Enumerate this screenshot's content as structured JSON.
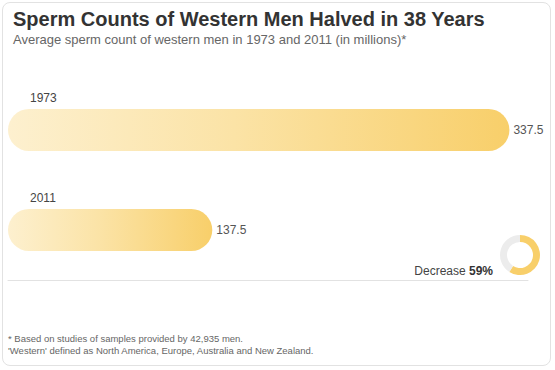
{
  "chart_data": {
    "type": "bar",
    "title": "Sperm Counts of Western Men Halved in 38 Years",
    "subtitle": "Average sperm count of western men in 1973 and 2011 (in millions)*",
    "orientation": "horizontal",
    "categories": [
      "1973",
      "2011"
    ],
    "values": [
      337.5,
      137.5
    ],
    "color": "#f8cf6a",
    "xlim": [
      0,
      350
    ],
    "data_labels": true,
    "tick_labels": "y",
    "grid": false,
    "annotation": {
      "text": "Decrease",
      "value": 59,
      "label": "59%"
    },
    "footnotes": [
      "* Based on studies of samples provided by 42,935 men.",
      "'Western' defined as North America, Europe, Australia and New Zealand."
    ]
  }
}
